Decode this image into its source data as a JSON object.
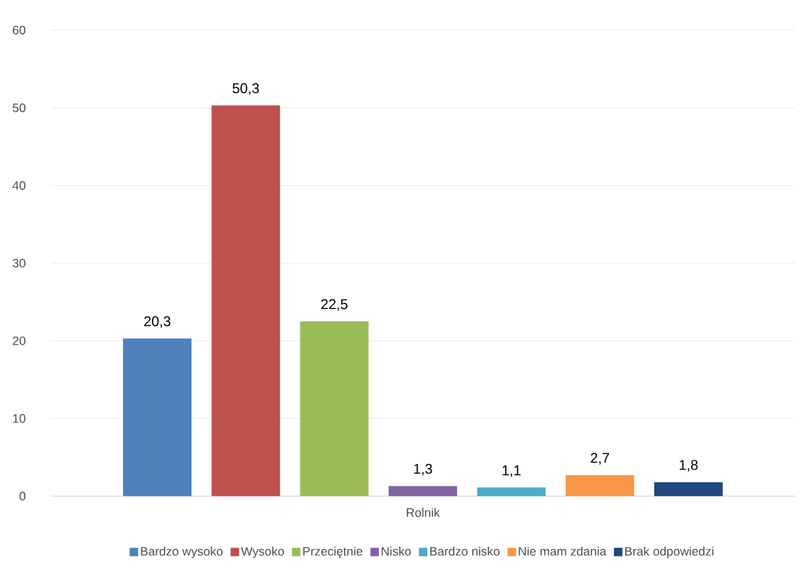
{
  "chart_data": {
    "type": "bar",
    "categories": [
      "Rolnik"
    ],
    "series": [
      {
        "name": "Bardzo wysoko",
        "color": "#4f81bd",
        "values": [
          20.3
        ],
        "value_labels": [
          "20,3"
        ]
      },
      {
        "name": "Wysoko",
        "color": "#c0504d",
        "values": [
          50.3
        ],
        "value_labels": [
          "50,3"
        ]
      },
      {
        "name": "Przeciętnie",
        "color": "#9bbb59",
        "values": [
          22.5
        ],
        "value_labels": [
          "22,5"
        ]
      },
      {
        "name": "Nisko",
        "color": "#8064a2",
        "values": [
          1.3
        ],
        "value_labels": [
          "1,3"
        ]
      },
      {
        "name": "Bardzo nisko",
        "color": "#4bacc6",
        "values": [
          1.1
        ],
        "value_labels": [
          "1,1"
        ]
      },
      {
        "name": "Nie mam zdania",
        "color": "#f79646",
        "values": [
          2.7
        ],
        "value_labels": [
          "2,7"
        ]
      },
      {
        "name": "Brak odpowiedzi",
        "color": "#1f497d",
        "values": [
          1.8
        ],
        "value_labels": [
          "1,8"
        ]
      }
    ],
    "ylim": [
      0,
      60
    ],
    "yticks": [
      0,
      10,
      20,
      30,
      40,
      50,
      60
    ],
    "grid": "y",
    "legend": "bottom"
  }
}
